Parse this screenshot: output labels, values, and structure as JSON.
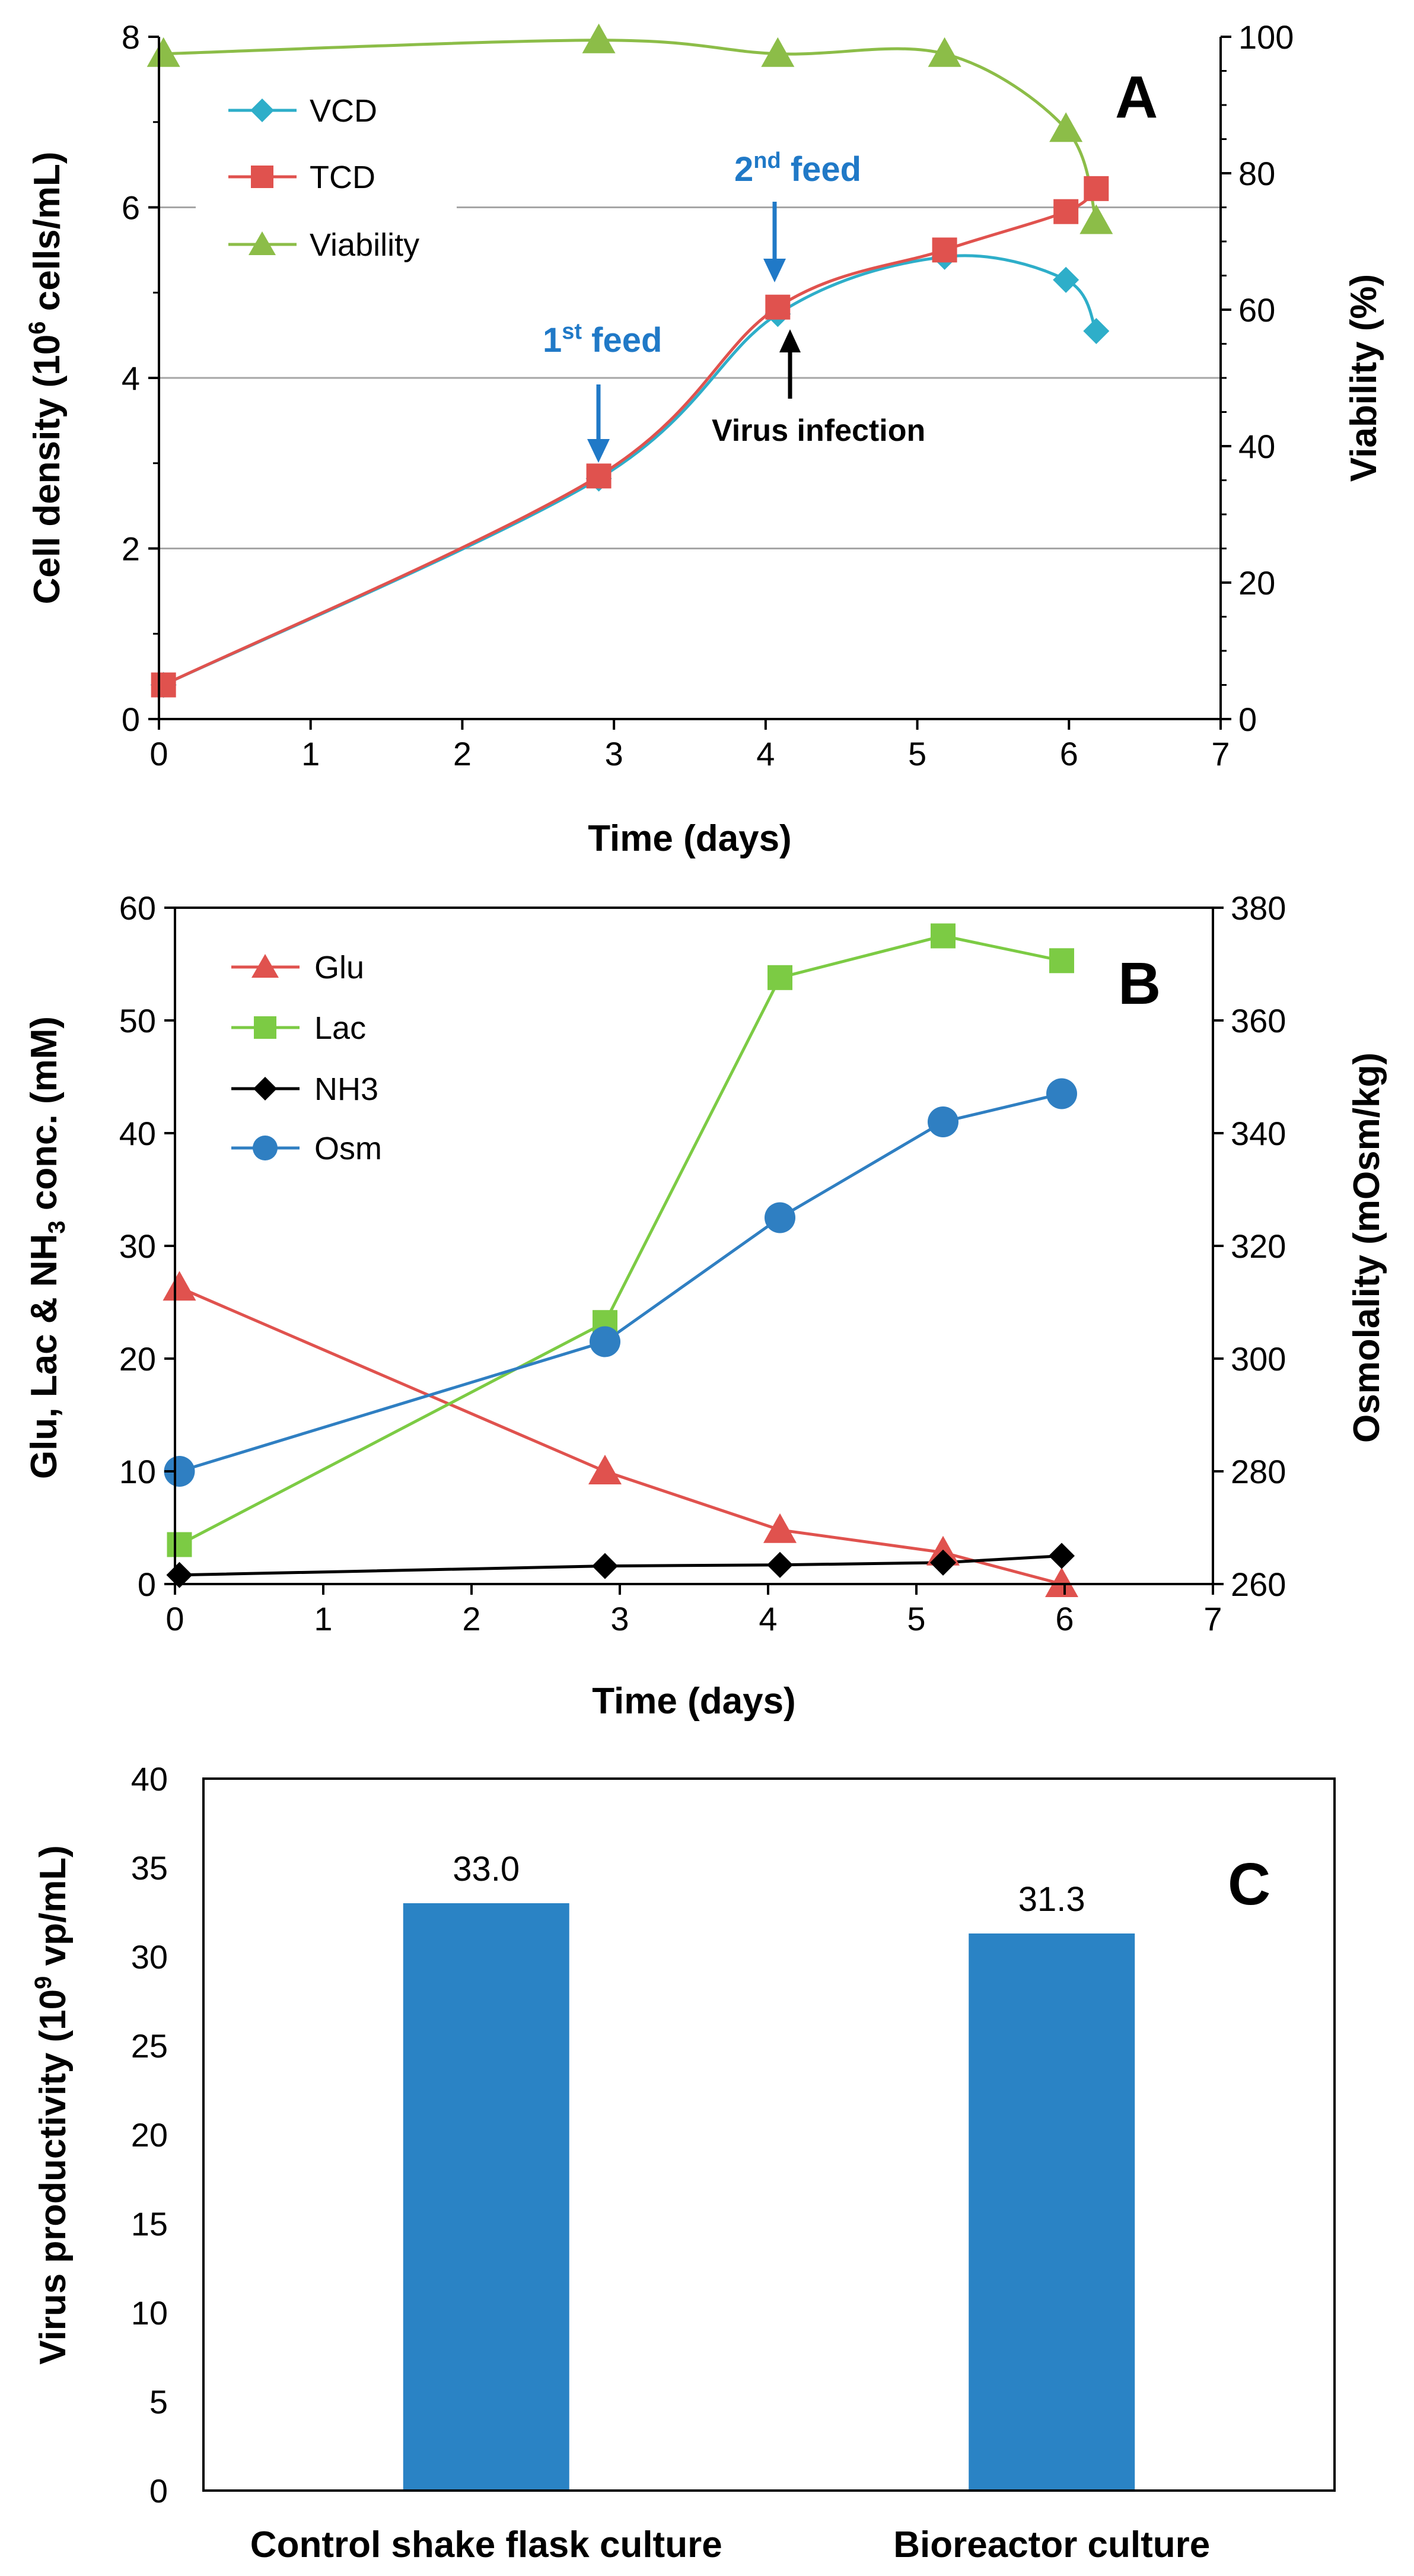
{
  "chart_data": [
    {
      "panel": "A",
      "type": "line",
      "panel_label": "A",
      "xlabel": "Time (days)",
      "ylabel": "Cell density (10^6 cells/mL)",
      "ylabel_parts": {
        "pre": "Cell density (10",
        "sup": "6",
        "post": " cells/mL)"
      },
      "y2label": "Viability (%)",
      "xlim": [
        0,
        7
      ],
      "ylim": [
        0,
        8
      ],
      "y2lim": [
        0,
        100
      ],
      "xticks": [
        "0",
        "1",
        "2",
        "3",
        "4",
        "5",
        "6",
        "7"
      ],
      "yticks": [
        "0",
        "2",
        "4",
        "6",
        "8"
      ],
      "y2ticks": [
        "0",
        "20",
        "40",
        "60",
        "80",
        "100"
      ],
      "grid": "horizontal",
      "legend_position": "top-left",
      "series": [
        {
          "name": "VCD",
          "axis": "left",
          "color": "#2eaec9",
          "marker": "diamond",
          "x": [
            0.03,
            2.9,
            4.08,
            5.18,
            5.98,
            6.18
          ],
          "y": [
            0.4,
            2.82,
            4.75,
            5.42,
            5.15,
            4.55
          ]
        },
        {
          "name": "TCD",
          "axis": "left",
          "color": "#e0524e",
          "marker": "square",
          "x": [
            0.03,
            2.9,
            4.08,
            5.18,
            5.98,
            6.18
          ],
          "y": [
            0.4,
            2.85,
            4.83,
            5.5,
            5.95,
            6.22
          ]
        },
        {
          "name": "Viability",
          "axis": "right",
          "color": "#8cbd48",
          "marker": "triangle",
          "x": [
            0.03,
            2.9,
            4.08,
            5.18,
            5.98,
            6.18
          ],
          "y": [
            97.5,
            99.5,
            97.5,
            97.5,
            86.5,
            73
          ]
        }
      ],
      "annotations": [
        {
          "label": "1st feed",
          "main": "1",
          "sup": "st",
          "rest": " feed",
          "x": 2.9,
          "arrow": "down",
          "color": "#2079c7"
        },
        {
          "label": "2nd feed",
          "main": "2",
          "sup": "nd",
          "rest": " feed",
          "x": 4.08,
          "arrow": "down",
          "color": "#2079c7"
        },
        {
          "label": "Virus infection",
          "x": 4.1,
          "arrow": "up",
          "color": "#000000"
        }
      ]
    },
    {
      "panel": "B",
      "type": "line",
      "panel_label": "B",
      "xlabel": "Time (days)",
      "ylabel": "Glu, Lac & NH3 conc. (mM)",
      "ylabel_parts": {
        "pre": "Glu, Lac & NH",
        "sub": "3",
        "post": " conc. (mM)"
      },
      "y2label": "Osmolality (mOsm/kg)",
      "xlim": [
        0,
        7
      ],
      "ylim": [
        0,
        60
      ],
      "y2lim": [
        260,
        380
      ],
      "xticks": [
        "0",
        "1",
        "2",
        "3",
        "4",
        "5",
        "6",
        "7"
      ],
      "yticks": [
        "0",
        "10",
        "20",
        "30",
        "40",
        "50",
        "60"
      ],
      "y2ticks": [
        "260",
        "280",
        "300",
        "320",
        "340",
        "360",
        "380"
      ],
      "grid": "none",
      "legend_position": "top-left",
      "series": [
        {
          "name": "Glu",
          "axis": "left",
          "color": "#e0524e",
          "marker": "triangle",
          "x": [
            0.03,
            2.9,
            4.08,
            5.18,
            5.98
          ],
          "y": [
            26.3,
            10,
            4.8,
            2.8,
            0
          ]
        },
        {
          "name": "Lac",
          "axis": "left",
          "color": "#7ccb44",
          "marker": "square",
          "x": [
            0.03,
            2.9,
            4.08,
            5.18,
            5.98
          ],
          "y": [
            3.5,
            23.2,
            53.8,
            57.5,
            55.3
          ]
        },
        {
          "name": "NH3",
          "axis": "left",
          "color": "#000000",
          "marker": "diamond",
          "x": [
            0.03,
            2.9,
            4.08,
            5.18,
            5.98
          ],
          "y": [
            0.8,
            1.6,
            1.7,
            1.9,
            2.5
          ]
        },
        {
          "name": "Osm",
          "axis": "right",
          "color": "#2f7fc2",
          "marker": "circle",
          "x": [
            0.03,
            2.9,
            4.08,
            5.18,
            5.98
          ],
          "y": [
            280,
            303,
            325,
            342,
            347
          ]
        }
      ]
    },
    {
      "panel": "C",
      "type": "bar",
      "panel_label": "C",
      "ylabel": "Virus productivity (10^9 vp/mL)",
      "ylabel_parts": {
        "pre": "Virus productivity (10",
        "sup": "9",
        "post": " vp/mL)"
      },
      "ylim": [
        0,
        40
      ],
      "yticks": [
        "0",
        "5",
        "10",
        "15",
        "20",
        "25",
        "30",
        "35",
        "40"
      ],
      "categories": [
        "Control shake flask culture",
        "Bioreactor culture"
      ],
      "values": [
        33.0,
        31.3
      ],
      "value_labels": [
        "33.0",
        "31.3"
      ],
      "bar_color": "#2a83c5",
      "grid": "none"
    }
  ]
}
